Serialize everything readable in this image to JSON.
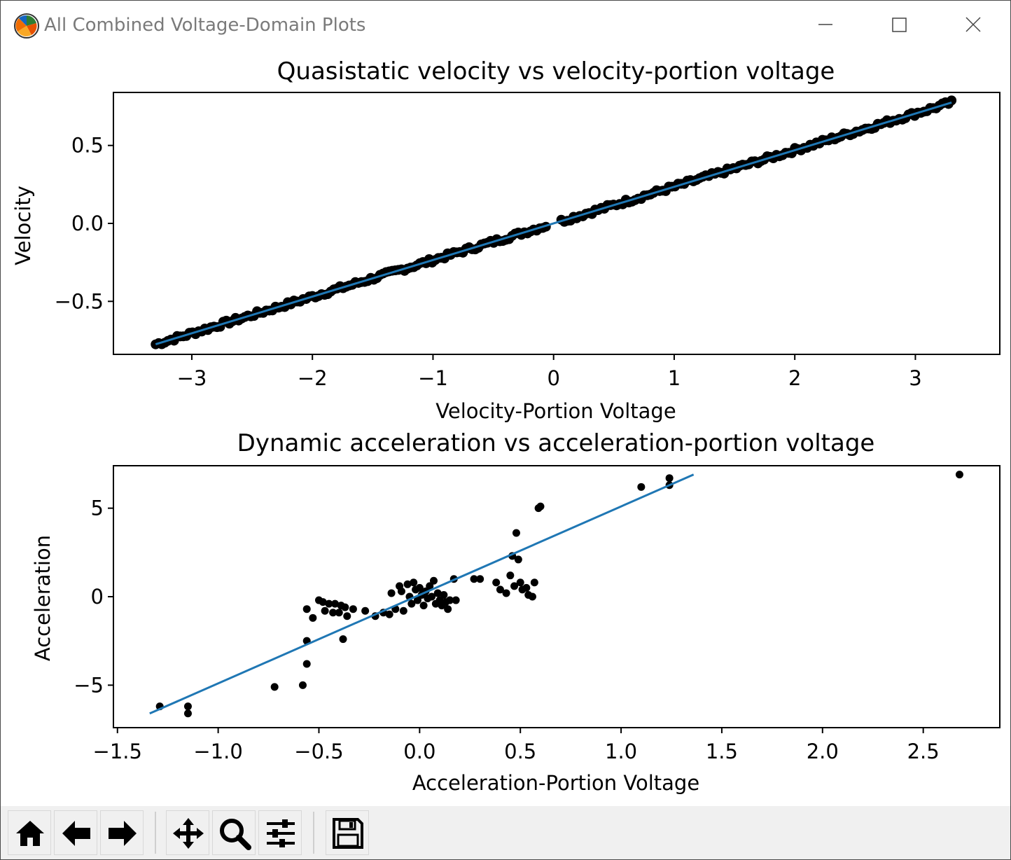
{
  "window": {
    "title": "All Combined Voltage-Domain Plots",
    "icons": [
      "app-icon",
      "minimize-icon",
      "maximize-icon",
      "close-icon"
    ]
  },
  "toolbar": {
    "icons": [
      "home-icon",
      "back-arrow-icon",
      "forward-arrow-icon",
      "pan-icon",
      "zoom-icon",
      "configure-subplots-icon",
      "save-icon"
    ]
  },
  "colors": {
    "scatter": "#000000",
    "fit_line": "#1f77b4",
    "title_text": "#7a7a7a",
    "toolbar_bg": "#f0f0f0"
  },
  "chart_data": [
    {
      "type": "scatter",
      "title": "Quasistatic velocity vs velocity-portion voltage",
      "xlabel": "Velocity-Portion Voltage",
      "ylabel": "Velocity",
      "xlim": [
        -3.65,
        3.7
      ],
      "ylim": [
        -0.84,
        0.84
      ],
      "xticks": [
        -3,
        -2,
        -1,
        0,
        1,
        2,
        3
      ],
      "xtick_labels": [
        "−3",
        "−2",
        "−1",
        "0",
        "1",
        "2",
        "3"
      ],
      "yticks": [
        0.5,
        0.0,
        -0.5
      ],
      "ytick_labels": [
        "0.5",
        "0.0",
        "−0.5"
      ],
      "grid": false,
      "scatter": {
        "name": "",
        "description_points": "dense band of points along the fit line from x=-3.3 to x=3.3",
        "x_range": [
          -3.3,
          3.3
        ],
        "slope": 0.235,
        "intercept": 0.0,
        "gap_x": [
          -0.05,
          0.05
        ],
        "point_count": 260
      },
      "fit_line": {
        "x": [
          -3.3,
          3.3
        ],
        "y": [
          -0.775,
          0.775
        ]
      }
    },
    {
      "type": "scatter",
      "title": "Dynamic acceleration vs acceleration-portion voltage",
      "xlabel": "Acceleration-Portion Voltage",
      "ylabel": "Acceleration",
      "xlim": [
        -1.52,
        2.88
      ],
      "ylim": [
        -7.4,
        7.4
      ],
      "xticks": [
        -1.5,
        -1.0,
        -0.5,
        0.0,
        0.5,
        1.0,
        1.5,
        2.0,
        2.5
      ],
      "xtick_labels": [
        "−1.5",
        "−1.0",
        "−0.5",
        "0.0",
        "0.5",
        "1.0",
        "1.5",
        "2.0",
        "2.5"
      ],
      "yticks": [
        5,
        0,
        -5
      ],
      "ytick_labels": [
        "5",
        "0",
        "−5"
      ],
      "grid": false,
      "scatter": {
        "name": "",
        "points": [
          [
            -1.29,
            -6.2
          ],
          [
            -1.15,
            -6.2
          ],
          [
            -1.15,
            -6.6
          ],
          [
            -0.72,
            -5.1
          ],
          [
            -0.58,
            -5.0
          ],
          [
            -0.56,
            -3.8
          ],
          [
            -0.56,
            -2.5
          ],
          [
            -0.56,
            -0.7
          ],
          [
            -0.53,
            -1.2
          ],
          [
            -0.5,
            -0.2
          ],
          [
            -0.48,
            -0.3
          ],
          [
            -0.47,
            -0.8
          ],
          [
            -0.45,
            -0.4
          ],
          [
            -0.43,
            -0.9
          ],
          [
            -0.42,
            -0.4
          ],
          [
            -0.4,
            -0.9
          ],
          [
            -0.39,
            -0.5
          ],
          [
            -0.38,
            -2.4
          ],
          [
            -0.37,
            -0.6
          ],
          [
            -0.36,
            -1.1
          ],
          [
            -0.33,
            -0.7
          ],
          [
            -0.27,
            -0.8
          ],
          [
            -0.22,
            -1.1
          ],
          [
            -0.18,
            -0.9
          ],
          [
            -0.15,
            -1.0
          ],
          [
            -0.14,
            0.2
          ],
          [
            -0.12,
            -0.7
          ],
          [
            -0.1,
            0.6
          ],
          [
            -0.09,
            0.3
          ],
          [
            -0.08,
            -0.8
          ],
          [
            -0.06,
            0.7
          ],
          [
            -0.05,
            0.0
          ],
          [
            -0.04,
            -0.4
          ],
          [
            -0.03,
            0.8
          ],
          [
            -0.02,
            0.4
          ],
          [
            -0.01,
            -0.2
          ],
          [
            0.0,
            0.5
          ],
          [
            0.01,
            0.1
          ],
          [
            0.02,
            -0.5
          ],
          [
            0.03,
            0.3
          ],
          [
            0.04,
            -0.1
          ],
          [
            0.05,
            0.6
          ],
          [
            0.06,
            0.0
          ],
          [
            0.07,
            0.9
          ],
          [
            0.08,
            -0.4
          ],
          [
            0.09,
            0.2
          ],
          [
            0.1,
            -0.2
          ],
          [
            0.11,
            -0.5
          ],
          [
            0.12,
            0.1
          ],
          [
            0.13,
            -0.3
          ],
          [
            0.14,
            -0.7
          ],
          [
            0.15,
            -0.2
          ],
          [
            0.17,
            1.0
          ],
          [
            0.18,
            -0.2
          ],
          [
            0.27,
            1.0
          ],
          [
            0.3,
            1.0
          ],
          [
            0.38,
            0.8
          ],
          [
            0.4,
            0.4
          ],
          [
            0.43,
            0.2
          ],
          [
            0.45,
            1.2
          ],
          [
            0.46,
            2.3
          ],
          [
            0.47,
            0.6
          ],
          [
            0.48,
            3.6
          ],
          [
            0.49,
            2.1
          ],
          [
            0.5,
            0.8
          ],
          [
            0.51,
            0.4
          ],
          [
            0.53,
            0.5
          ],
          [
            0.54,
            0.1
          ],
          [
            0.56,
            0.0
          ],
          [
            0.57,
            0.8
          ],
          [
            0.59,
            5.0
          ],
          [
            0.6,
            5.1
          ],
          [
            1.1,
            6.2
          ],
          [
            1.24,
            6.3
          ],
          [
            1.24,
            6.7
          ],
          [
            2.68,
            6.9
          ]
        ]
      },
      "fit_line": {
        "x": [
          -1.34,
          1.36
        ],
        "y": [
          -6.6,
          6.9
        ]
      }
    }
  ]
}
